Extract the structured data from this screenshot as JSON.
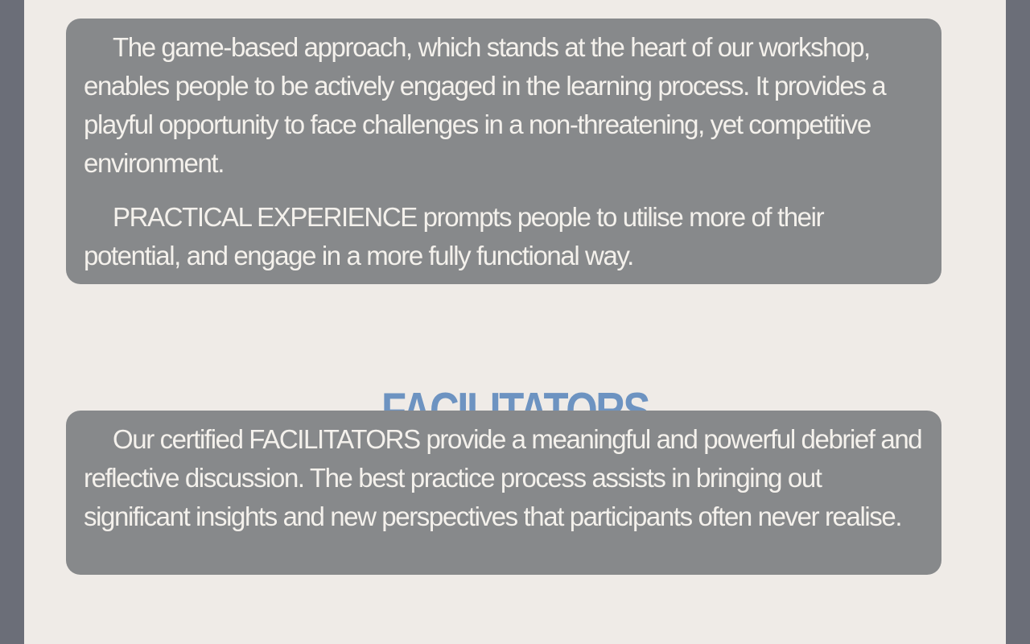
{
  "approach_card": {
    "paragraph_1": "The game-based approach, which stands at the heart of our workshop, enables people to be actively engaged in the learning process. It provides a playful opportunity to face challenges in a non-threatening, yet competitive environment.",
    "paragraph_2": "PRACTICAL EXPERIENCE prompts people to utilise more of their potential, and engage in a more fully functional way."
  },
  "facilitators": {
    "heading": "FACILITATORS",
    "paragraph": "Our certified FACILITATORS provide a meaningful and powerful debrief and reflective discussion. The best practice process assists in bringing out significant insights and new perspectives that participants often never realise."
  },
  "colors": {
    "frame": "#6b6e78",
    "page_background": "#efebe7",
    "card_background": "#87898b",
    "card_text": "#f4f1ec",
    "heading_accent": "#6d93c1"
  }
}
